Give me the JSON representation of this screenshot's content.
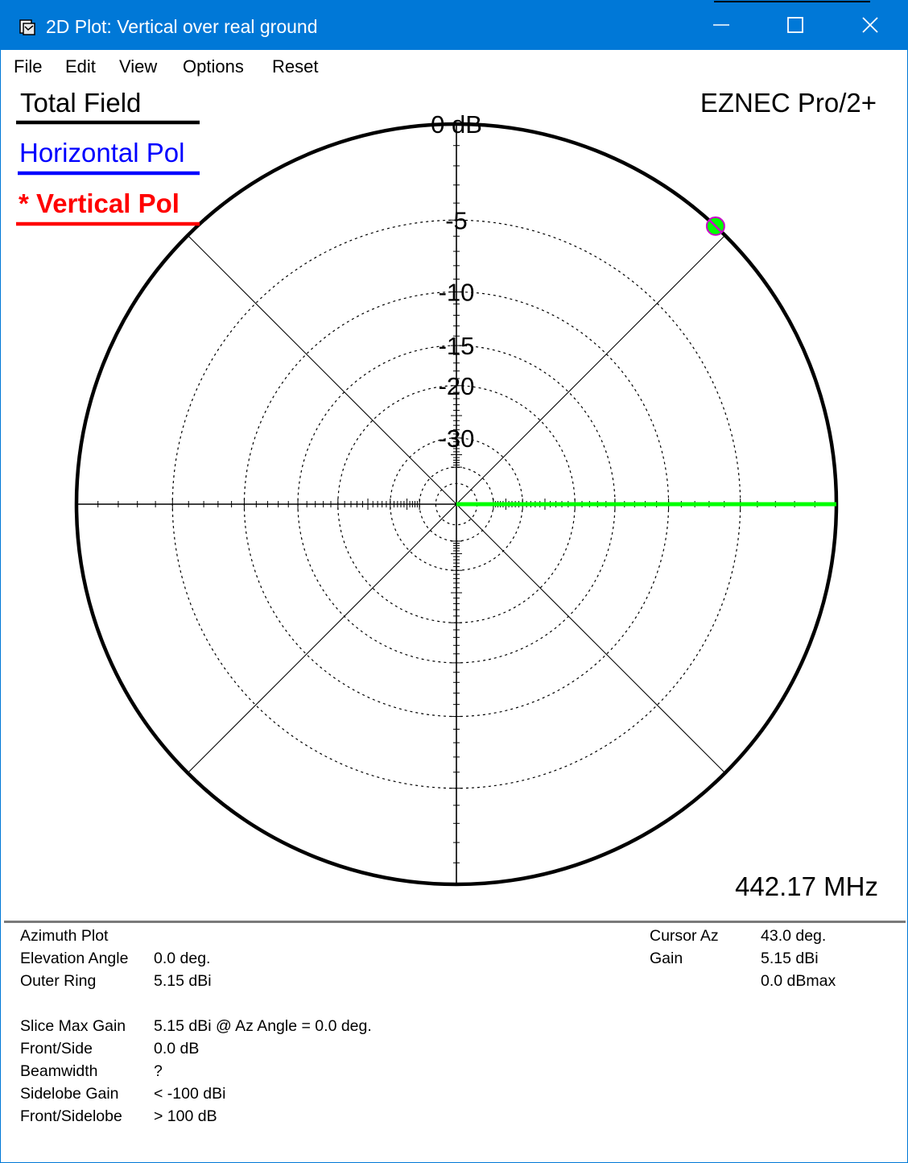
{
  "window": {
    "title": "2D Plot: Vertical over real ground",
    "controls": {
      "minimize": "minimize",
      "maximize": "maximize",
      "close": "close"
    }
  },
  "menu": [
    "File",
    "Edit",
    "View",
    "Options",
    "Reset"
  ],
  "legend": {
    "total": "Total Field",
    "horizontal": "Horizontal Pol",
    "vertical": "* Vertical Pol"
  },
  "branding": "EZNEC Pro/2+",
  "frequency": "442.17 MHz",
  "colors": {
    "titlebar": "#0078d7",
    "total": "#000000",
    "horizontal": "#0000ff",
    "vertical": "#ff0000",
    "pattern": "#00ff00",
    "cursor_marker": "#cc00cc"
  },
  "chart_data": {
    "type": "polar",
    "ring_labels": [
      "0 dB",
      "-5",
      "-10",
      "-15",
      "-20",
      "-30"
    ],
    "ring_db": [
      0,
      -5,
      -10,
      -15,
      -20,
      -30,
      -40,
      -50
    ],
    "axis_angles_deg": [
      0,
      45,
      90,
      135,
      180,
      225,
      270,
      315
    ],
    "pattern": {
      "name": "Vertical Pol",
      "direction_deg": 0,
      "level_db": 0
    },
    "cursor": {
      "azimuth_deg": 43.0,
      "level_db": 0.0
    }
  },
  "info": {
    "left": [
      {
        "label": "Azimuth Plot",
        "value": ""
      },
      {
        "label": "Elevation Angle",
        "value": "0.0 deg."
      },
      {
        "label": "Outer Ring",
        "value": "5.15 dBi"
      },
      {
        "label": "Slice Max Gain",
        "value": "5.15 dBi @ Az Angle = 0.0 deg."
      },
      {
        "label": "Front/Side",
        "value": "0.0 dB"
      },
      {
        "label": "Beamwidth",
        "value": "?"
      },
      {
        "label": "Sidelobe Gain",
        "value": "< -100 dBi"
      },
      {
        "label": "Front/Sidelobe",
        "value": "> 100 dB"
      }
    ],
    "right": [
      {
        "label": "Cursor Az",
        "value": "43.0 deg."
      },
      {
        "label": "Gain",
        "value": "5.15 dBi"
      },
      {
        "label": "",
        "value": "0.0 dBmax"
      }
    ]
  }
}
